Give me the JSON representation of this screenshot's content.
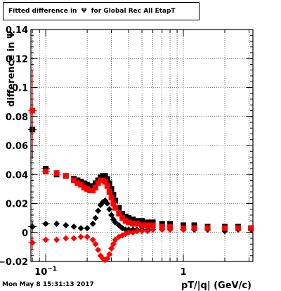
{
  "chart_data": {
    "type": "scatter",
    "title": "Fitted difference in  Ψ  for Global Rec All EtapT",
    "xlabel": "pT/|q| (GeV/c)",
    "ylabel": "difference in  Ψ",
    "xscale": "log",
    "xlim": [
      0.078,
      3.2
    ],
    "ylim": [
      -0.02,
      0.14
    ],
    "grid": true,
    "x_ticks": [
      {
        "value": 0.1,
        "label": "10",
        "sup": "−1"
      },
      {
        "value": 1,
        "label": "1",
        "sup": ""
      }
    ],
    "y_ticks": [
      {
        "value": -0.02,
        "label": "−0.02"
      },
      {
        "value": 0,
        "label": "0"
      },
      {
        "value": 0.02,
        "label": "0.02"
      },
      {
        "value": 0.04,
        "label": "0.04"
      },
      {
        "value": 0.06,
        "label": "0.06"
      },
      {
        "value": 0.08,
        "label": "0.08"
      },
      {
        "value": 0.1,
        "label": "0.1"
      },
      {
        "value": 0.12,
        "label": "0.12"
      },
      {
        "value": 0.14,
        "label": "0.14"
      }
    ],
    "series": [
      {
        "color": "#000000",
        "marker": "square",
        "x": [
          0.08,
          0.1,
          0.12,
          0.14,
          0.16,
          0.17,
          0.18,
          0.19,
          0.2,
          0.21,
          0.22,
          0.23,
          0.24,
          0.25,
          0.26,
          0.27,
          0.28,
          0.29,
          0.3,
          0.31,
          0.32,
          0.34,
          0.36,
          0.38,
          0.4,
          0.43,
          0.46,
          0.5,
          0.55,
          0.6,
          0.7,
          0.8,
          1.0,
          1.2,
          1.5,
          2.0,
          2.5,
          3.1
        ],
        "y": [
          0.071,
          0.044,
          0.04,
          0.039,
          0.037,
          0.036,
          0.035,
          0.034,
          0.033,
          0.032,
          0.032,
          0.034,
          0.036,
          0.038,
          0.039,
          0.039,
          0.037,
          0.034,
          0.03,
          0.026,
          0.022,
          0.017,
          0.013,
          0.011,
          0.01,
          0.009,
          0.008,
          0.008,
          0.007,
          0.007,
          0.006,
          0.006,
          0.005,
          0.005,
          0.004,
          0.004,
          0.004,
          0.003
        ],
        "yerr": [
          0.02,
          0.002,
          0.0015,
          0.001,
          0.001,
          0.001,
          0.001,
          0.001,
          0.001,
          0.001,
          0.001,
          0.001,
          0.001,
          0.001,
          0.001,
          0.001,
          0.001,
          0.001,
          0.001,
          0.001,
          0.001,
          0.001,
          0.001,
          0.001,
          0.001,
          0.001,
          0.001,
          0.001,
          0.001,
          0.001,
          0.001,
          0.001,
          0.001,
          0.001,
          0.001,
          0.001,
          0.001,
          0.001
        ]
      },
      {
        "color": "#ff0000",
        "marker": "square",
        "x": [
          0.08,
          0.1,
          0.12,
          0.14,
          0.16,
          0.17,
          0.18,
          0.19,
          0.2,
          0.21,
          0.22,
          0.23,
          0.24,
          0.25,
          0.26,
          0.27,
          0.28,
          0.29,
          0.3,
          0.31,
          0.32,
          0.34,
          0.36,
          0.38,
          0.4,
          0.43,
          0.46,
          0.5,
          0.55,
          0.6,
          0.7,
          0.8,
          1.0,
          1.2,
          1.5,
          2.0,
          2.5,
          3.1
        ],
        "y": [
          0.084,
          0.042,
          0.041,
          0.039,
          0.036,
          0.034,
          0.033,
          0.031,
          0.03,
          0.029,
          0.029,
          0.031,
          0.034,
          0.036,
          0.036,
          0.035,
          0.032,
          0.028,
          0.024,
          0.02,
          0.017,
          0.013,
          0.01,
          0.008,
          0.007,
          0.006,
          0.006,
          0.005,
          0.005,
          0.005,
          0.004,
          0.004,
          0.003,
          0.003,
          0.003,
          0.003,
          0.003,
          0.003
        ],
        "yerr": [
          0.028,
          0.002,
          0.0015,
          0.001,
          0.001,
          0.001,
          0.001,
          0.001,
          0.001,
          0.001,
          0.001,
          0.001,
          0.001,
          0.001,
          0.001,
          0.001,
          0.001,
          0.001,
          0.001,
          0.001,
          0.001,
          0.001,
          0.001,
          0.001,
          0.001,
          0.001,
          0.001,
          0.001,
          0.001,
          0.001,
          0.001,
          0.001,
          0.001,
          0.001,
          0.001,
          0.001,
          0.001,
          0.001
        ]
      },
      {
        "color": "#000000",
        "marker": "diamond",
        "x": [
          0.08,
          0.1,
          0.12,
          0.14,
          0.16,
          0.18,
          0.2,
          0.22,
          0.23,
          0.24,
          0.25,
          0.26,
          0.27,
          0.28,
          0.29,
          0.3,
          0.31,
          0.32,
          0.34,
          0.36,
          0.38,
          0.4,
          0.43,
          0.46,
          0.5,
          0.55,
          0.6,
          0.7,
          0.8,
          1.0,
          1.2,
          1.5,
          2.0,
          2.5,
          3.1
        ],
        "y": [
          0.004,
          0.006,
          0.006,
          0.005,
          0.004,
          0.003,
          0.003,
          0.006,
          0.01,
          0.015,
          0.019,
          0.021,
          0.022,
          0.02,
          0.016,
          0.012,
          0.009,
          0.007,
          0.005,
          0.003,
          0.002,
          0.002,
          0.002,
          0.002,
          0.002,
          0.002,
          0.002,
          0.002,
          0.002,
          0.002,
          0.002,
          0.002,
          0.001,
          0.002,
          0.002
        ],
        "yerr": [
          0.004,
          0.001,
          0.001,
          0.001,
          0.001,
          0.001,
          0.001,
          0.001,
          0.001,
          0.001,
          0.001,
          0.001,
          0.001,
          0.001,
          0.001,
          0.001,
          0.001,
          0.001,
          0.001,
          0.001,
          0.001,
          0.001,
          0.001,
          0.001,
          0.001,
          0.001,
          0.001,
          0.001,
          0.001,
          0.001,
          0.001,
          0.001,
          0.001,
          0.001,
          0.001
        ]
      },
      {
        "color": "#ff0000",
        "marker": "diamond",
        "x": [
          0.08,
          0.1,
          0.12,
          0.14,
          0.16,
          0.18,
          0.2,
          0.22,
          0.23,
          0.24,
          0.25,
          0.26,
          0.27,
          0.28,
          0.29,
          0.3,
          0.31,
          0.32,
          0.34,
          0.36,
          0.38,
          0.4,
          0.43,
          0.46,
          0.5,
          0.55,
          0.6,
          0.7,
          0.8,
          1.0,
          1.2,
          1.5,
          2.0,
          2.5,
          3.1
        ],
        "y": [
          -0.007,
          -0.005,
          -0.005,
          -0.004,
          -0.004,
          -0.003,
          -0.003,
          -0.005,
          -0.008,
          -0.012,
          -0.016,
          -0.018,
          -0.019,
          -0.018,
          -0.015,
          -0.011,
          -0.008,
          -0.005,
          -0.003,
          -0.002,
          -0.001,
          0.0,
          0.0,
          0.001,
          0.001,
          0.001,
          0.002,
          0.002,
          0.002,
          0.002,
          0.003,
          0.003,
          0.003,
          0.003,
          0.003
        ],
        "yerr": [
          0.005,
          0.001,
          0.001,
          0.001,
          0.001,
          0.001,
          0.001,
          0.001,
          0.001,
          0.001,
          0.001,
          0.001,
          0.001,
          0.001,
          0.001,
          0.001,
          0.001,
          0.001,
          0.001,
          0.001,
          0.001,
          0.001,
          0.001,
          0.001,
          0.001,
          0.001,
          0.001,
          0.001,
          0.001,
          0.001,
          0.001,
          0.001,
          0.001,
          0.001,
          0.001
        ]
      }
    ]
  },
  "footer": "Mon May  8 15:31:13 2017"
}
